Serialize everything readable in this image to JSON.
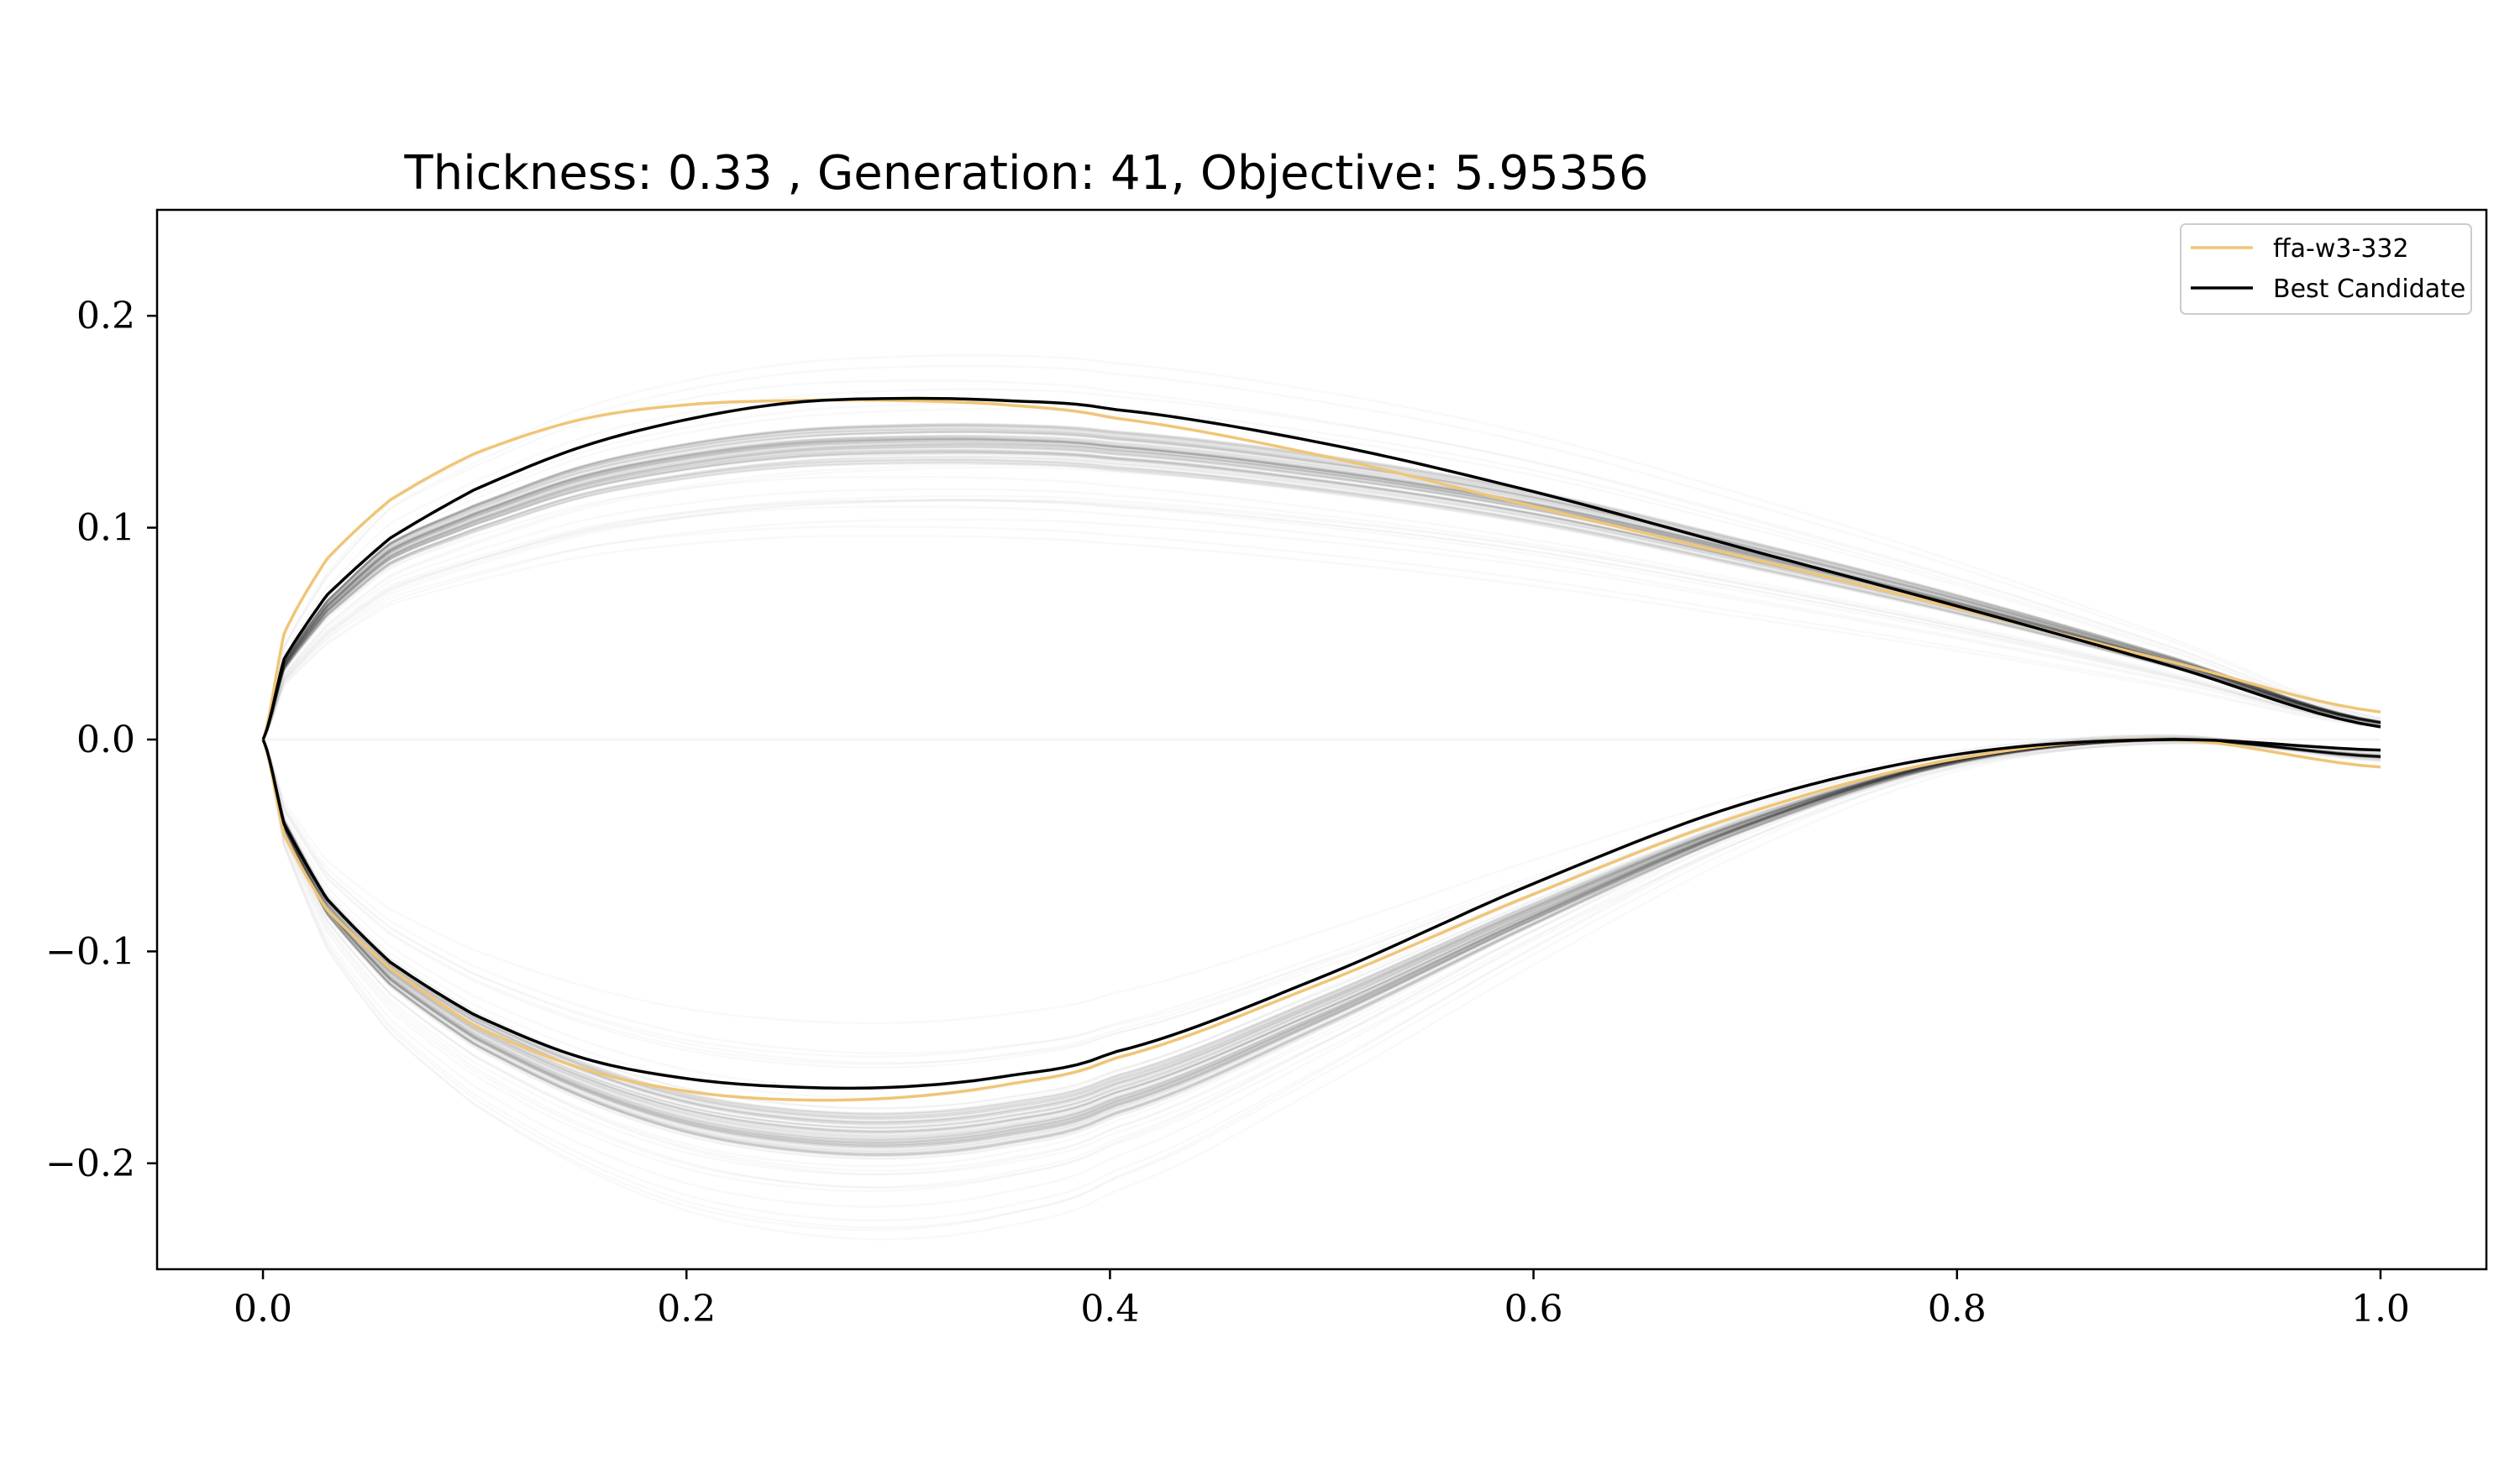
{
  "chart_data": {
    "type": "line",
    "title": "Thickness: 0.33 , Generation: 41, Objective: 5.95356",
    "xlabel": "",
    "ylabel": "",
    "xlim": [
      -0.05,
      1.05
    ],
    "ylim": [
      -0.25,
      0.25
    ],
    "x_ticks": [
      0.0,
      0.2,
      0.4,
      0.6,
      0.8,
      1.0
    ],
    "x_tick_labels": [
      "0.0",
      "0.2",
      "0.4",
      "0.6",
      "0.8",
      "1.0"
    ],
    "y_ticks": [
      0.2,
      0.1,
      0.0,
      -0.1,
      -0.2
    ],
    "y_tick_labels": [
      "0.2",
      "0.1",
      "0.0",
      "−0.1",
      "−0.2"
    ],
    "grid": false,
    "legend_position": "top-right",
    "colors": {
      "reference": "#f0c577",
      "best": "#000000",
      "population": "#000000"
    },
    "series": [
      {
        "name": "ffa-w3-332",
        "upper": {
          "x": [
            0.0,
            0.01,
            0.03,
            0.06,
            0.1,
            0.15,
            0.2,
            0.25,
            0.3,
            0.35,
            0.4,
            0.5,
            0.6,
            0.7,
            0.8,
            0.9,
            1.0
          ],
          "y": [
            0.0,
            0.05,
            0.085,
            0.113,
            0.135,
            0.151,
            0.158,
            0.16,
            0.16,
            0.158,
            0.152,
            0.134,
            0.11,
            0.086,
            0.062,
            0.037,
            0.013
          ]
        },
        "lower": {
          "x": [
            0.0,
            0.01,
            0.03,
            0.06,
            0.1,
            0.15,
            0.2,
            0.25,
            0.3,
            0.35,
            0.4,
            0.5,
            0.6,
            0.7,
            0.8,
            0.9,
            1.0
          ],
          "y": [
            0.0,
            -0.045,
            -0.08,
            -0.108,
            -0.135,
            -0.155,
            -0.166,
            -0.17,
            -0.169,
            -0.163,
            -0.151,
            -0.115,
            -0.073,
            -0.035,
            -0.009,
            0.0,
            -0.013
          ]
        }
      },
      {
        "name": "Best Candidate",
        "upper": {
          "x": [
            0.0,
            0.01,
            0.03,
            0.06,
            0.1,
            0.15,
            0.2,
            0.25,
            0.3,
            0.35,
            0.4,
            0.5,
            0.6,
            0.7,
            0.8,
            0.9,
            1.0
          ],
          "y": [
            0.0,
            0.038,
            0.068,
            0.095,
            0.118,
            0.138,
            0.151,
            0.159,
            0.161,
            0.16,
            0.156,
            0.14,
            0.117,
            0.09,
            0.063,
            0.035,
            0.006
          ]
        },
        "lower": {
          "x": [
            0.0,
            0.01,
            0.03,
            0.06,
            0.1,
            0.15,
            0.2,
            0.25,
            0.3,
            0.35,
            0.4,
            0.5,
            0.6,
            0.7,
            0.8,
            0.9,
            1.0
          ],
          "y": [
            0.0,
            -0.04,
            -0.075,
            -0.105,
            -0.13,
            -0.15,
            -0.16,
            -0.164,
            -0.164,
            -0.159,
            -0.148,
            -0.112,
            -0.068,
            -0.03,
            -0.007,
            0.0,
            -0.005
          ]
        }
      }
    ],
    "population": {
      "count": 80,
      "upper_mean": {
        "x": [
          0.0,
          0.01,
          0.03,
          0.06,
          0.1,
          0.15,
          0.2,
          0.25,
          0.3,
          0.35,
          0.4,
          0.5,
          0.6,
          0.7,
          0.8,
          0.9,
          1.0
        ],
        "y": [
          0.0,
          0.035,
          0.062,
          0.088,
          0.105,
          0.122,
          0.132,
          0.138,
          0.14,
          0.14,
          0.137,
          0.126,
          0.11,
          0.088,
          0.064,
          0.037,
          0.008
        ]
      },
      "lower_mean": {
        "x": [
          0.0,
          0.01,
          0.03,
          0.06,
          0.1,
          0.15,
          0.2,
          0.25,
          0.3,
          0.35,
          0.4,
          0.5,
          0.6,
          0.7,
          0.8,
          0.9,
          1.0
        ],
        "y": [
          0.0,
          -0.04,
          -0.078,
          -0.11,
          -0.137,
          -0.16,
          -0.176,
          -0.184,
          -0.186,
          -0.181,
          -0.168,
          -0.128,
          -0.082,
          -0.04,
          -0.01,
          0.0,
          -0.008
        ]
      }
    }
  }
}
